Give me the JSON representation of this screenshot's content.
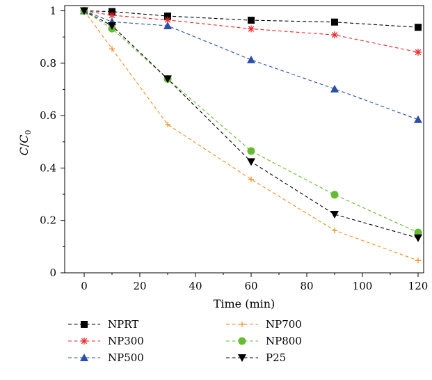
{
  "chart_data": {
    "type": "line",
    "xlabel": "Time (min)",
    "ylabel": {
      "main": "C",
      "sep": "/",
      "sub_base": "C",
      "sub": "0"
    },
    "xlim": [
      -7,
      122
    ],
    "ylim": [
      0,
      1.02
    ],
    "xticks": [
      0,
      20,
      40,
      60,
      80,
      100,
      120
    ],
    "yticks": [
      0,
      0.2,
      0.4,
      0.6,
      0.8,
      1
    ],
    "xtick_labels": [
      "0",
      "20",
      "40",
      "60",
      "80",
      "100",
      "120"
    ],
    "ytick_labels": [
      "0",
      "0.2",
      "0.4",
      "0.6",
      "0.8",
      "1"
    ],
    "legend_placement": "bottom",
    "series": [
      {
        "name": "NPRT",
        "color": "#000000",
        "marker": "square",
        "x": [
          0,
          10,
          30,
          60,
          90,
          120
        ],
        "y": [
          1.0,
          0.997,
          0.98,
          0.964,
          0.957,
          0.937
        ]
      },
      {
        "name": "NP300",
        "color": "#e8262b",
        "marker": "star",
        "x": [
          0,
          10,
          30,
          60,
          90,
          120
        ],
        "y": [
          1.0,
          0.983,
          0.965,
          0.931,
          0.908,
          0.842
        ]
      },
      {
        "name": "NP500",
        "color": "#2b4fa8",
        "marker": "triangle-up",
        "x": [
          0,
          10,
          30,
          60,
          90,
          120
        ],
        "y": [
          1.0,
          0.958,
          0.943,
          0.813,
          0.702,
          0.585
        ]
      },
      {
        "name": "NP700",
        "color": "#f08a24",
        "marker": "plus",
        "x": [
          0,
          10,
          30,
          60,
          90,
          120
        ],
        "y": [
          1.0,
          0.855,
          0.566,
          0.357,
          0.162,
          0.047
        ]
      },
      {
        "name": "NP800",
        "color": "#66bb33",
        "marker": "circle",
        "x": [
          0,
          10,
          30,
          60,
          90,
          120
        ],
        "y": [
          1.0,
          0.932,
          0.74,
          0.465,
          0.298,
          0.154
        ]
      },
      {
        "name": "P25",
        "color": "#000000",
        "marker": "triangle-down",
        "x": [
          0,
          10,
          30,
          60,
          90,
          120
        ],
        "y": [
          1.0,
          0.943,
          0.74,
          0.424,
          0.223,
          0.133
        ]
      }
    ]
  }
}
